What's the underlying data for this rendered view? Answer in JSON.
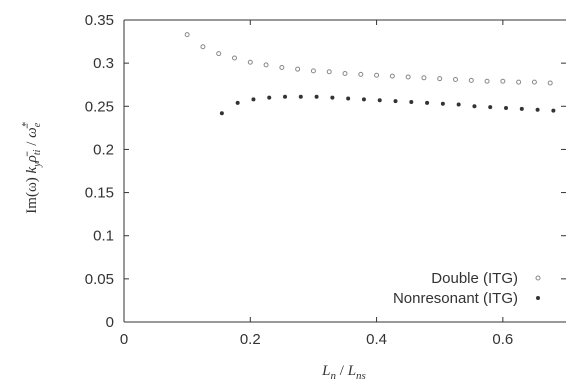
{
  "chart_data": {
    "type": "scatter",
    "title": "",
    "xlabel": "L_n / L_ns",
    "ylabel": "Im(ω) k_y ρ̄_ti / ω̄*_e",
    "xlim": [
      0,
      0.7
    ],
    "ylim": [
      0,
      0.35
    ],
    "x_ticks": [
      "0",
      "0.2",
      "0.4",
      "0.6"
    ],
    "y_ticks": [
      "0",
      "0.05",
      "0.1",
      "0.15",
      "0.2",
      "0.25",
      "0.3",
      "0.35"
    ],
    "grid": false,
    "legend_position": "bottom-right",
    "series": [
      {
        "name": "Double (ITG)",
        "marker": "open-circle",
        "x": [
          0.1,
          0.125,
          0.15,
          0.175,
          0.2,
          0.225,
          0.25,
          0.275,
          0.3,
          0.325,
          0.35,
          0.375,
          0.4,
          0.425,
          0.45,
          0.475,
          0.5,
          0.525,
          0.55,
          0.575,
          0.6,
          0.625,
          0.65,
          0.675,
          0.7
        ],
        "y": [
          0.333,
          0.319,
          0.311,
          0.306,
          0.301,
          0.298,
          0.295,
          0.293,
          0.291,
          0.29,
          0.288,
          0.287,
          0.286,
          0.285,
          0.284,
          0.283,
          0.282,
          0.281,
          0.28,
          0.279,
          0.279,
          0.278,
          0.278,
          0.277,
          0.277
        ]
      },
      {
        "name": "Nonresonant (ITG)",
        "marker": "filled-circle",
        "x": [
          0.155,
          0.18,
          0.205,
          0.23,
          0.255,
          0.28,
          0.305,
          0.33,
          0.355,
          0.38,
          0.405,
          0.43,
          0.455,
          0.48,
          0.505,
          0.53,
          0.555,
          0.58,
          0.605,
          0.63,
          0.655,
          0.68,
          0.7
        ],
        "y": [
          0.242,
          0.254,
          0.258,
          0.26,
          0.261,
          0.261,
          0.261,
          0.26,
          0.259,
          0.258,
          0.257,
          0.256,
          0.255,
          0.254,
          0.253,
          0.252,
          0.25,
          0.249,
          0.248,
          0.247,
          0.246,
          0.245,
          0.244
        ]
      }
    ]
  },
  "axis": {
    "x_label_main": "L",
    "x_label_sub1": "n",
    "x_label_sep": " / ",
    "x_label_main2": "L",
    "x_label_sub2": "ns",
    "y_label_pre": "Im(ω) ",
    "y_label_k": "k",
    "y_label_ksub": "y",
    "y_label_rho": "ρ̄",
    "y_label_rhosub": "ti",
    "y_label_sep": " / ",
    "y_label_omega": "ω̄",
    "y_label_omegasup": "*",
    "y_label_omegasub": "e"
  },
  "colors": {
    "axis": "#333333",
    "open_marker": "#888888",
    "filled_marker": "#333333"
  }
}
